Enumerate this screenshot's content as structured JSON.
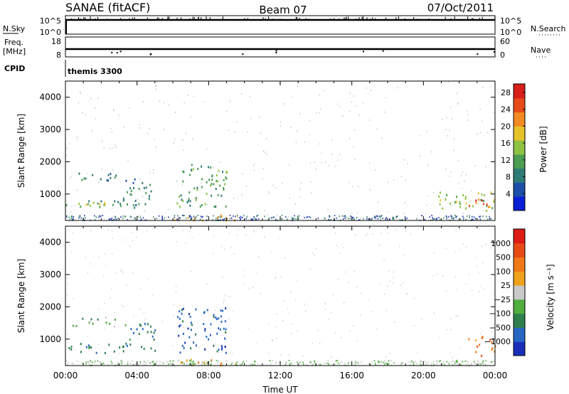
{
  "header": {
    "radar": "SANAE (fitACF)",
    "beam": "Beam 07",
    "date": "07/Oct/2011"
  },
  "status_panels": {
    "nsky_label": "N.Sky",
    "nsky_ticks": [
      "10^5",
      "10^0"
    ],
    "nsearch_label": "N.Search",
    "nsearch_ticks": [
      "10^5",
      "10^0"
    ],
    "freq_label": "Freq.",
    "freq_unit": "[MHz]",
    "freq_ticks": [
      18,
      8
    ],
    "nave_label": "Nave",
    "nave_ticks": [
      60,
      0
    ],
    "cpid_label": "CPID",
    "cpid_value": "themis 3300"
  },
  "chart_data": [
    {
      "type": "heatmap",
      "title": "",
      "ylabel": "Slant Range [km]",
      "xlabel": "",
      "xlim": [
        "00:00",
        "24:00"
      ],
      "ylim": [
        180,
        4500
      ],
      "yticks": [
        1000,
        2000,
        3000,
        4000
      ],
      "colorbar": {
        "label": "Power [dB]",
        "ticks": [
          4,
          8,
          12,
          16,
          20,
          24,
          28
        ],
        "range": [
          0,
          30
        ],
        "colors": [
          "#0b1fd6",
          "#1d4fa8",
          "#2e7b78",
          "#4c9e52",
          "#8fc243",
          "#e6c229",
          "#f08a22",
          "#e84b1a",
          "#d81f1a"
        ]
      },
      "scatter_regions": [
        {
          "t_start": 0.3,
          "t_end": 2.8,
          "r_start": 1400,
          "r_end": 1700,
          "value": 7
        },
        {
          "t_start": 0.0,
          "t_end": 3.2,
          "r_start": 600,
          "r_end": 900,
          "value": 11
        },
        {
          "t_start": 0.8,
          "t_end": 2.5,
          "r_start": 620,
          "r_end": 760,
          "value": 19
        },
        {
          "t_start": 3.2,
          "t_end": 5.0,
          "r_start": 600,
          "r_end": 1500,
          "value": 9
        },
        {
          "t_start": 6.2,
          "t_end": 9.0,
          "r_start": 600,
          "r_end": 2000,
          "value": 10
        },
        {
          "t_start": 6.0,
          "t_end": 9.8,
          "r_start": 200,
          "r_end": 400,
          "value": 23
        },
        {
          "t_start": 20.8,
          "t_end": 24.0,
          "r_start": 500,
          "r_end": 1100,
          "value": 15
        },
        {
          "t_start": 22.5,
          "t_end": 23.8,
          "r_start": 550,
          "r_end": 900,
          "value": 24
        }
      ]
    },
    {
      "type": "heatmap",
      "title": "",
      "ylabel": "Slant Range [km]",
      "xlabel": "Time UT",
      "xlim": [
        "00:00",
        "24:00"
      ],
      "ylim": [
        180,
        4500
      ],
      "xticks": [
        "00:00",
        "04:00",
        "08:00",
        "12:00",
        "16:00",
        "20:00",
        "00:00"
      ],
      "yticks": [
        1000,
        2000,
        3000,
        4000
      ],
      "colorbar": {
        "label": "Velocity [m s⁻¹]",
        "ticks": [
          "1000",
          "500",
          "100",
          "25",
          "−25",
          "−100",
          "−500",
          "−1000"
        ],
        "colors": [
          "#1a2fb8",
          "#2767c2",
          "#2f7f4f",
          "#4fae3e",
          "#c9c9c9",
          "#f0a21c",
          "#f07818",
          "#e84a16",
          "#dd1c16"
        ]
      },
      "scatter_regions": [
        {
          "t_start": 0.3,
          "t_end": 2.8,
          "r_start": 1400,
          "r_end": 1700,
          "velocity": "25"
        },
        {
          "t_start": 0.0,
          "t_end": 3.2,
          "r_start": 600,
          "r_end": 900,
          "velocity": "100"
        },
        {
          "t_start": 3.2,
          "t_end": 5.0,
          "r_start": 600,
          "r_end": 1500,
          "velocity": "100"
        },
        {
          "t_start": 6.2,
          "t_end": 9.0,
          "r_start": 600,
          "r_end": 2000,
          "velocity": "500"
        },
        {
          "t_start": 6.0,
          "t_end": 9.8,
          "r_start": 200,
          "r_end": 400,
          "velocity": "−100"
        },
        {
          "t_start": 22.5,
          "t_end": 24.0,
          "r_start": 500,
          "r_end": 1100,
          "velocity": "−500"
        }
      ]
    }
  ]
}
